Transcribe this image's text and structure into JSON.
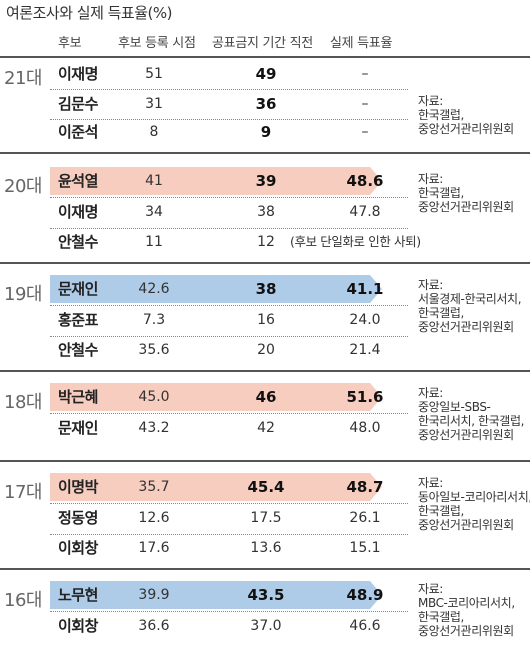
{
  "title": "여론조사와 실제 득표율(%)",
  "headers": {
    "candidate": "후보",
    "registration": "후보 등록 시점",
    "before_ban": "공표금지 기간 직전",
    "actual": "실제 득표율"
  },
  "colors": {
    "conservative_highlight": "#f6cdbf",
    "progressive_highlight": "#aecbe8",
    "rule": "#555555"
  },
  "elections": [
    {
      "era": "21대",
      "rows": [
        {
          "name": "이재명",
          "reg": "51",
          "pre": "49",
          "actual": "–"
        },
        {
          "name": "김문수",
          "reg": "31",
          "pre": "36",
          "actual": "–"
        },
        {
          "name": "이준석",
          "reg": "8",
          "pre": "9",
          "actual": "–"
        }
      ],
      "source": [
        "자료:",
        "한국갤럽,",
        "중앙선거관리위원회"
      ]
    },
    {
      "era": "20대",
      "rows": [
        {
          "name": "윤석열",
          "reg": "41",
          "pre": "39",
          "actual": "48.6"
        },
        {
          "name": "이재명",
          "reg": "34",
          "pre": "38",
          "actual": "47.8"
        },
        {
          "name": "안철수",
          "reg": "11",
          "pre": "12",
          "note": "(후보 단일화로 인한 사퇴)"
        }
      ],
      "source": [
        "자료:",
        "한국갤럽,",
        "중앙선거관리위원회"
      ]
    },
    {
      "era": "19대",
      "rows": [
        {
          "name": "문재인",
          "reg": "42.6",
          "pre": "38",
          "actual": "41.1"
        },
        {
          "name": "홍준표",
          "reg": "7.3",
          "pre": "16",
          "actual": "24.0"
        },
        {
          "name": "안철수",
          "reg": "35.6",
          "pre": "20",
          "actual": "21.4"
        }
      ],
      "source": [
        "자료:",
        "서울경제-한국리서치,",
        "한국갤럽,",
        "중앙선거관리위원회"
      ]
    },
    {
      "era": "18대",
      "rows": [
        {
          "name": "박근혜",
          "reg": "45.0",
          "pre": "46",
          "actual": "51.6"
        },
        {
          "name": "문재인",
          "reg": "43.2",
          "pre": "42",
          "actual": "48.0"
        }
      ],
      "source": [
        "자료:",
        "중앙일보-SBS-",
        "한국리서치, 한국갤럽,",
        "중앙선거관리위원회"
      ]
    },
    {
      "era": "17대",
      "rows": [
        {
          "name": "이명박",
          "reg": "35.7",
          "pre": "45.4",
          "actual": "48.7"
        },
        {
          "name": "정동영",
          "reg": "12.6",
          "pre": "17.5",
          "actual": "26.1"
        },
        {
          "name": "이회창",
          "reg": "17.6",
          "pre": "13.6",
          "actual": "15.1"
        }
      ],
      "source": [
        "자료:",
        "동아일보-코리아리서치,",
        "한국갤럽,",
        "중앙선거관리위원회"
      ]
    },
    {
      "era": "16대",
      "rows": [
        {
          "name": "노무현",
          "reg": "39.9",
          "pre": "43.5",
          "actual": "48.9"
        },
        {
          "name": "이회창",
          "reg": "36.6",
          "pre": "37.0",
          "actual": "46.6"
        }
      ],
      "source": [
        "자료:",
        "MBC-코리아리서치,",
        "한국갤럽,",
        "중앙선거관리위원회"
      ]
    }
  ]
}
